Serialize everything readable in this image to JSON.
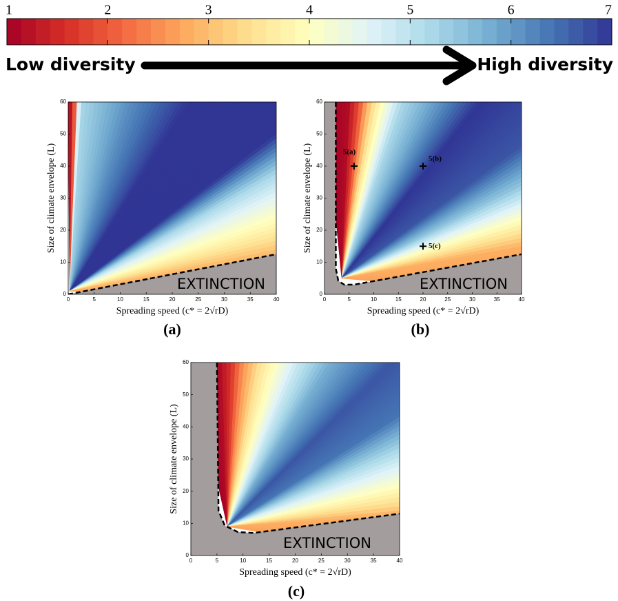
{
  "colorbar": {
    "lim": [
      1,
      7
    ],
    "ticks": [
      1,
      2,
      3,
      4,
      5,
      6,
      7
    ],
    "colors": [
      "#a50026",
      "#d73027",
      "#f46d43",
      "#fdae61",
      "#fee090",
      "#ffffbf",
      "#e0f3f8",
      "#abd9e9",
      "#74add1",
      "#4575b4",
      "#313695"
    ],
    "low_label": "Low diversity",
    "high_label": "High diversity"
  },
  "chart_data": [
    {
      "type": "contour",
      "label": "(a)",
      "xlabel": "Spreading speed (c* = 2√rD)",
      "ylabel": "Size of climate envelope (L)",
      "xlim": [
        0,
        40
      ],
      "ylim": [
        0,
        60
      ],
      "xticks": [
        0,
        5,
        10,
        15,
        20,
        25,
        30,
        35,
        40
      ],
      "yticks": [
        0,
        10,
        20,
        30,
        40,
        50,
        60
      ],
      "annotation": "EXTINCTION"
    },
    {
      "type": "contour",
      "label": "(b)",
      "xlabel": "Spreading speed (c* = 2√rD)",
      "ylabel": "Size of climate envelope (L)",
      "xlim": [
        0,
        40
      ],
      "ylim": [
        0,
        60
      ],
      "xticks": [
        0,
        5,
        10,
        15,
        20,
        25,
        30,
        35,
        40
      ],
      "yticks": [
        0,
        10,
        20,
        30,
        40,
        50,
        60
      ],
      "annotation": "EXTINCTION",
      "points": {
        "x": [
          6,
          20,
          20
        ],
        "y": [
          40,
          40,
          15
        ],
        "labels": [
          "5(a)",
          "5(b)",
          "5(c)"
        ]
      }
    },
    {
      "type": "contour",
      "label": "(c)",
      "xlabel": "Spreading speed (c* = 2√rD)",
      "ylabel": "Size of climate envelope (L)",
      "xlim": [
        0,
        40
      ],
      "ylim": [
        0,
        60
      ],
      "xticks": [
        0,
        5,
        10,
        15,
        20,
        25,
        30,
        35,
        40
      ],
      "yticks": [
        0,
        10,
        20,
        30,
        40,
        50,
        60
      ],
      "annotation": "EXTINCTION"
    }
  ]
}
